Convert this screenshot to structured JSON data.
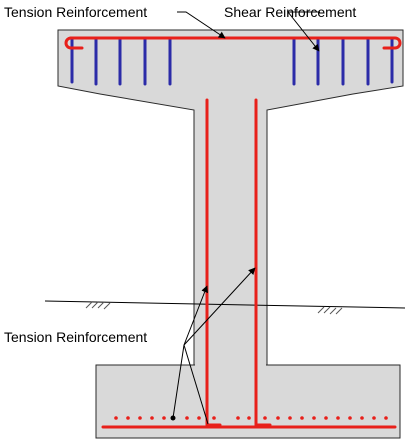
{
  "labels": {
    "top_left": "Tension Reinforcement",
    "top_right": "Shear Reinforcement",
    "bottom_left": "Tension Reinforcement"
  },
  "colors": {
    "concrete": "#d9d9d9",
    "outline": "#2a2a2a",
    "tension_rebar": "#e8201a",
    "shear_rebar": "#2b2ba8",
    "leader": "#000000",
    "background": "#ffffff"
  }
}
